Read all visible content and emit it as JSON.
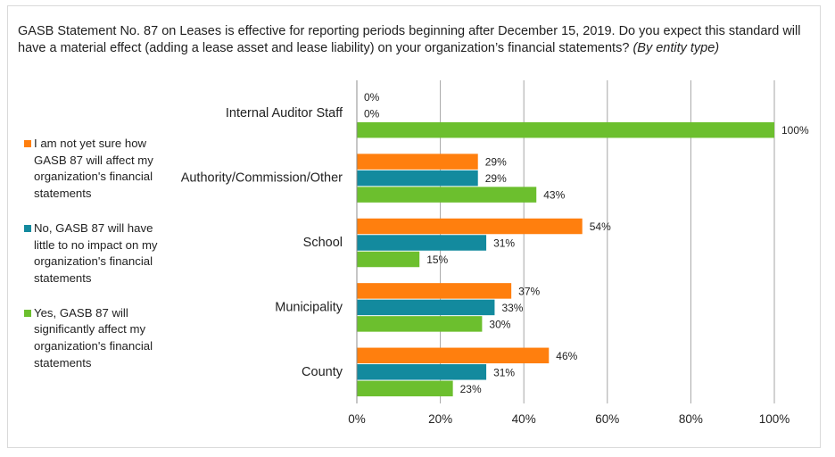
{
  "title": {
    "main": "GASB Statement No. 87 on Leases is effective for reporting periods beginning after December 15, 2019. Do you expect this standard will have a material effect (adding a lease asset and lease liability) on your organization’s financial statements?",
    "italic": "(By entity type)"
  },
  "colors": {
    "not_sure": "#ff7f0e",
    "little_impact": "#138a9e",
    "significant": "#6cbf2e",
    "grid": "#a6a6a6"
  },
  "chart_data": {
    "type": "bar",
    "orientation": "horizontal",
    "categories": [
      "Internal Auditor Staff",
      "Authority/Commission/Other",
      "School",
      "Municipality",
      "County"
    ],
    "series": [
      {
        "name": "I am not yet sure how GASB 87 will affect my organization's financial statements",
        "color": "#ff7f0e",
        "values": [
          0,
          29,
          54,
          37,
          46
        ],
        "labels": [
          "0%",
          "29%",
          "54%",
          "37%",
          "46%"
        ]
      },
      {
        "name": "No, GASB 87 will have little to no impact on my organization's financial statements",
        "color": "#138a9e",
        "values": [
          0,
          29,
          31,
          33,
          31
        ],
        "labels": [
          "0%",
          "29%",
          "31%",
          "33%",
          "31%"
        ]
      },
      {
        "name": "Yes, GASB 87 will significantly affect my organization's financial statements",
        "color": "#6cbf2e",
        "values": [
          100,
          43,
          15,
          30,
          23
        ],
        "labels": [
          "100%",
          "43%",
          "15%",
          "30%",
          "23%"
        ]
      }
    ],
    "xlim": [
      0,
      100
    ],
    "xticks": [
      0,
      20,
      40,
      60,
      80,
      100
    ],
    "xtick_labels": [
      "0%",
      "20%",
      "40%",
      "60%",
      "80%",
      "100%"
    ],
    "grid": true,
    "legend_placement": "left"
  }
}
